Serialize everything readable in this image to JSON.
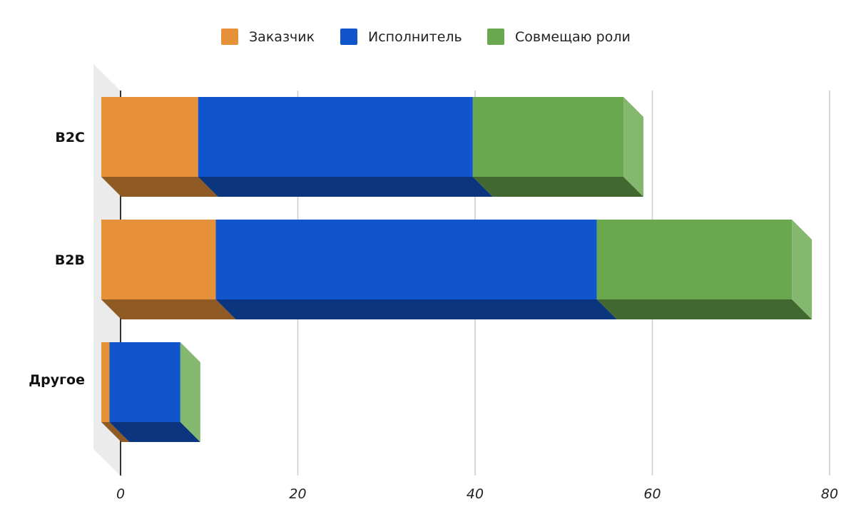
{
  "chart_data": {
    "type": "bar",
    "orientation": "horizontal",
    "stacked": true,
    "style_3d": true,
    "categories": [
      "B2C",
      "B2B",
      "Другое"
    ],
    "series": [
      {
        "name": "Заказчик",
        "color": "#e6913a",
        "values": [
          11,
          13,
          1
        ]
      },
      {
        "name": "Исполнитель",
        "color": "#1155cc",
        "values": [
          31,
          43,
          8
        ]
      },
      {
        "name": "Совмещаю роли",
        "color": "#6aa84f",
        "values": [
          17,
          22,
          0
        ]
      }
    ],
    "x_ticks": [
      "0",
      "20",
      "40",
      "60",
      "80"
    ],
    "xlim": [
      0,
      80
    ],
    "grid": "vertical",
    "legend_position": "top-center"
  }
}
